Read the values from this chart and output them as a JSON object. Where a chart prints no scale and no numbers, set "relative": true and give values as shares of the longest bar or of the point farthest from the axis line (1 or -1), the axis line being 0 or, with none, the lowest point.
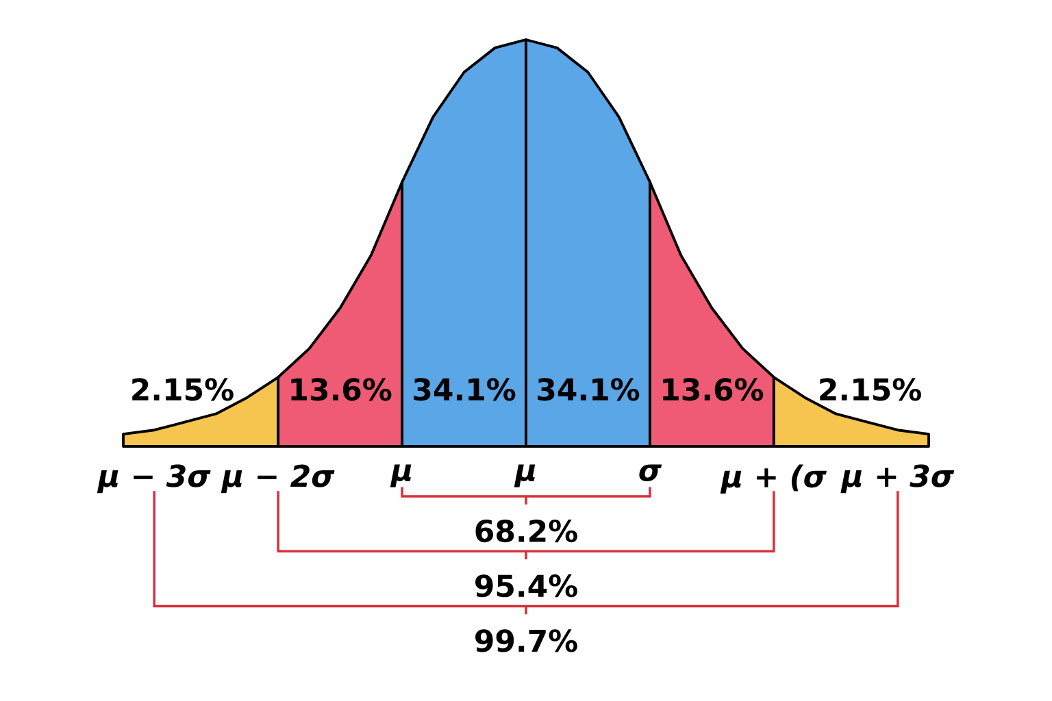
{
  "chart_data": {
    "type": "area",
    "relative": true,
    "grid": false,
    "categories": [
      null,
      "μ − 3σ",
      null,
      null,
      null,
      "μ − 2σ",
      null,
      null,
      null,
      "μ",
      null,
      null,
      null,
      "μ",
      null,
      null,
      null,
      "σ",
      null,
      null,
      null,
      "μ + (σ",
      null,
      null,
      null,
      "μ + 3σ",
      null
    ],
    "series": [
      {
        "color": "#f6c550",
        "values": [
          0.03,
          0.04,
          0.06,
          0.08,
          0.12,
          0.17,
          null,
          null,
          null,
          null,
          null,
          null,
          null,
          null,
          null,
          null,
          null,
          null,
          null,
          null,
          null,
          null,
          null,
          null,
          null,
          null,
          null
        ]
      },
      {
        "color": "#ef5a74",
        "values": [
          null,
          null,
          null,
          null,
          null,
          0.17,
          0.24,
          0.34,
          0.47,
          0.65,
          null,
          null,
          null,
          null,
          null,
          null,
          null,
          null,
          null,
          null,
          null,
          null,
          null,
          null,
          null,
          null,
          null
        ]
      },
      {
        "color": "#5aa6e6",
        "values": [
          null,
          null,
          null,
          null,
          null,
          null,
          null,
          null,
          null,
          0.65,
          0.81,
          0.92,
          0.98,
          1,
          null,
          null,
          null,
          null,
          null,
          null,
          null,
          null,
          null,
          null,
          null,
          null,
          null
        ]
      },
      {
        "color": "#5aa6e6",
        "values": [
          null,
          null,
          null,
          null,
          null,
          null,
          null,
          null,
          null,
          null,
          null,
          null,
          null,
          1,
          0.98,
          0.92,
          0.81,
          0.65,
          null,
          null,
          null,
          null,
          null,
          null,
          null,
          null,
          null
        ]
      },
      {
        "color": "#ef5a74",
        "values": [
          null,
          null,
          null,
          null,
          null,
          null,
          null,
          null,
          null,
          null,
          null,
          null,
          null,
          null,
          null,
          null,
          null,
          0.65,
          0.47,
          0.34,
          0.24,
          0.17,
          null,
          null,
          null,
          null,
          null
        ]
      },
      {
        "color": "#f6c550",
        "values": [
          null,
          null,
          null,
          null,
          null,
          null,
          null,
          null,
          null,
          null,
          null,
          null,
          null,
          null,
          null,
          null,
          null,
          null,
          null,
          null,
          null,
          0.17,
          0.12,
          0.08,
          0.06,
          0.04,
          0.03
        ]
      }
    ],
    "annotations": [
      "2.15%",
      "13.6%",
      "34.1%",
      "34.1%",
      "13.6%",
      "2.15%",
      "68.2%",
      "95.4%",
      "99.7%"
    ]
  }
}
